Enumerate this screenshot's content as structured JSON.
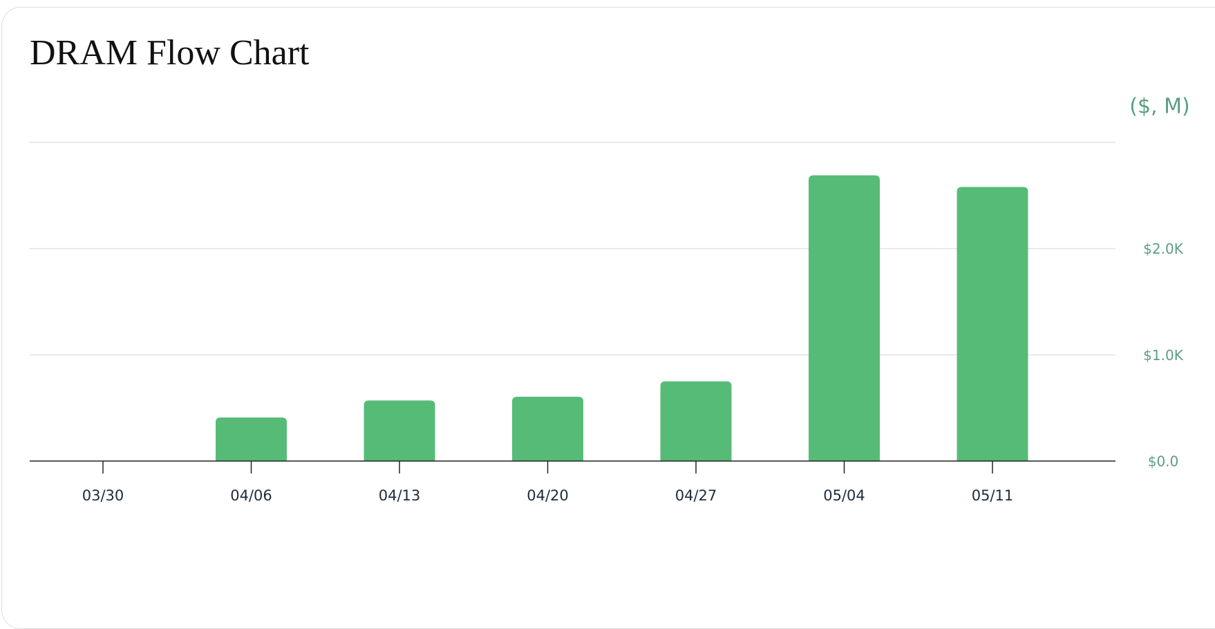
{
  "chart_data": {
    "type": "bar",
    "title": "DRAM Flow Chart",
    "y_axis_label": "($, M)",
    "categories": [
      "03/30",
      "04/06",
      "04/13",
      "04/20",
      "04/27",
      "05/04",
      "05/11"
    ],
    "values": [
      0,
      410,
      570,
      605,
      750,
      2690,
      2580
    ],
    "color": "#57bb78",
    "ylim": [
      0,
      3000
    ],
    "yticks": [
      {
        "value": 0,
        "label": "$0.0"
      },
      {
        "value": 1000,
        "label": "$1.0K"
      },
      {
        "value": 2000,
        "label": "$2.0K"
      }
    ],
    "grid": true
  }
}
